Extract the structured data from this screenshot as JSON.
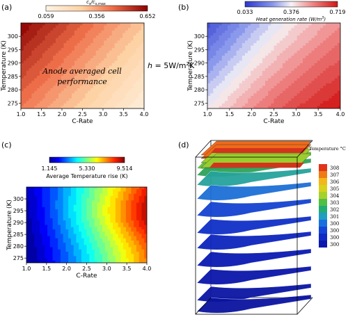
{
  "chart_data": [
    {
      "type": "heatmap",
      "panel": "(a)",
      "xlabel": "C-Rate",
      "ylabel": "Temperature (K)",
      "x_ticks": [
        "1.0",
        "1.5",
        "2.0",
        "2.5",
        "3.0",
        "3.5",
        "4.0"
      ],
      "y_ticks": [
        "275",
        "280",
        "285",
        "290",
        "295",
        "300"
      ],
      "xlim": [
        1.0,
        4.0
      ],
      "ylim": [
        273,
        305
      ],
      "colorbar": {
        "title_main": "c",
        "title_sub": "s",
        "title_rest": "/c",
        "title_sub2": "s,max",
        "min": 0.059,
        "mid": 0.356,
        "max": 0.652,
        "ticks": [
          "0.059",
          "0.356",
          "0.652"
        ],
        "colormap": "OrRd"
      },
      "annotation": [
        "Anode averaged cell",
        "performance"
      ]
    },
    {
      "type": "heatmap",
      "panel": "(b)",
      "xlabel": "C-Rate",
      "ylabel": "Temperature (K)",
      "x_ticks": [
        "1.0",
        "1.5",
        "2.0",
        "2.5",
        "3.0",
        "3.5",
        "4.0"
      ],
      "y_ticks": [
        "275",
        "280",
        "285",
        "290",
        "295",
        "300"
      ],
      "xlim": [
        1.0,
        4.0
      ],
      "ylim": [
        273,
        305
      ],
      "colorbar": {
        "title": "Heat generation rate (W/m",
        "title_sup": "3",
        "title_end": ")",
        "min": 0.033,
        "mid": 0.376,
        "max": 0.719,
        "ticks": [
          "0.033",
          "0.376",
          "0.719"
        ],
        "colormap": "bwr"
      }
    },
    {
      "type": "heatmap",
      "panel": "(c)",
      "xlabel": "C-Rate",
      "ylabel": "Temperature (K)",
      "x_ticks": [
        "1.0",
        "1.5",
        "2.0",
        "2.5",
        "3.0",
        "3.5",
        "4.0"
      ],
      "y_ticks": [
        "275",
        "280",
        "285",
        "290",
        "295",
        "300"
      ],
      "xlim": [
        1.0,
        4.0
      ],
      "ylim": [
        273,
        305
      ],
      "colorbar": {
        "title": "Average Temperature rise (K)",
        "min": 1.145,
        "mid": 5.33,
        "max": 9.514,
        "ticks": [
          "1.145",
          "5.330",
          "9.514"
        ],
        "colormap": "jet"
      }
    },
    {
      "type": "3d-slices",
      "panel": "(d)",
      "colorbar": {
        "title": "Temperature °C",
        "labels": [
          "308",
          "307",
          "306",
          "305",
          "304",
          "303",
          "302",
          "301",
          "300",
          "300",
          "300",
          "300"
        ]
      }
    }
  ],
  "annotation_h": {
    "prefix": "h",
    "text": " = 5W/m",
    "sup": "2",
    "suffix": "K"
  },
  "panel_labels": [
    "(a)",
    "(b)",
    "(c)",
    "(d)"
  ]
}
